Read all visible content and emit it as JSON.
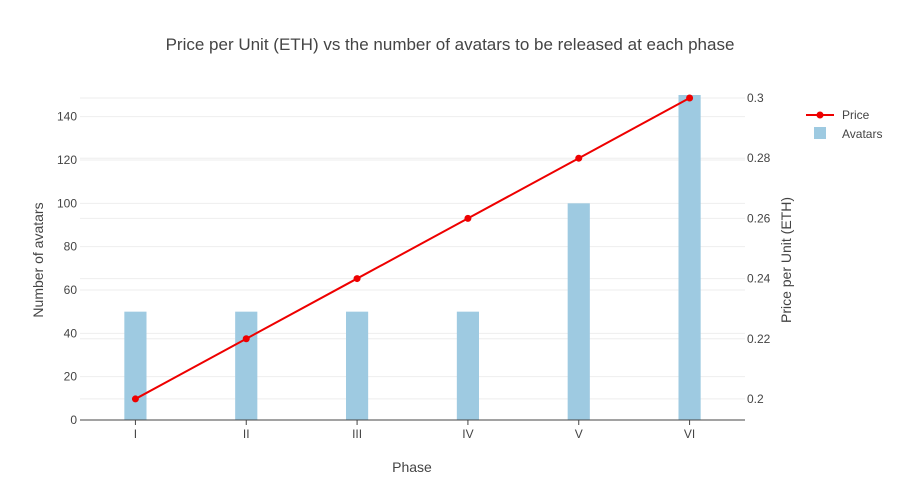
{
  "chart_data": {
    "type": "bar",
    "title": "Price per Unit (ETH) vs the number of avatars to be released at each phase",
    "xlabel": "Phase",
    "ylabel": "Number of avatars",
    "y2label": "Price per Unit (ETH)",
    "categories": [
      "I",
      "II",
      "III",
      "IV",
      "V",
      "VI"
    ],
    "ylim": [
      0,
      150
    ],
    "y2lim": [
      0.193,
      0.301
    ],
    "yticks": [
      0,
      20,
      40,
      60,
      80,
      100,
      120,
      140
    ],
    "y2ticks": [
      0.2,
      0.22,
      0.24,
      0.26,
      0.28,
      0.3
    ],
    "grid": true,
    "legend_position": "top-right",
    "series": [
      {
        "name": "Price",
        "kind": "line",
        "axis": "right",
        "color": "#ee0000",
        "values": [
          0.2,
          0.22,
          0.24,
          0.26,
          0.28,
          0.3
        ]
      },
      {
        "name": "Avatars",
        "kind": "bar",
        "axis": "left",
        "color": "#9ecae1",
        "values": [
          50,
          50,
          50,
          50,
          100,
          150
        ]
      }
    ]
  }
}
